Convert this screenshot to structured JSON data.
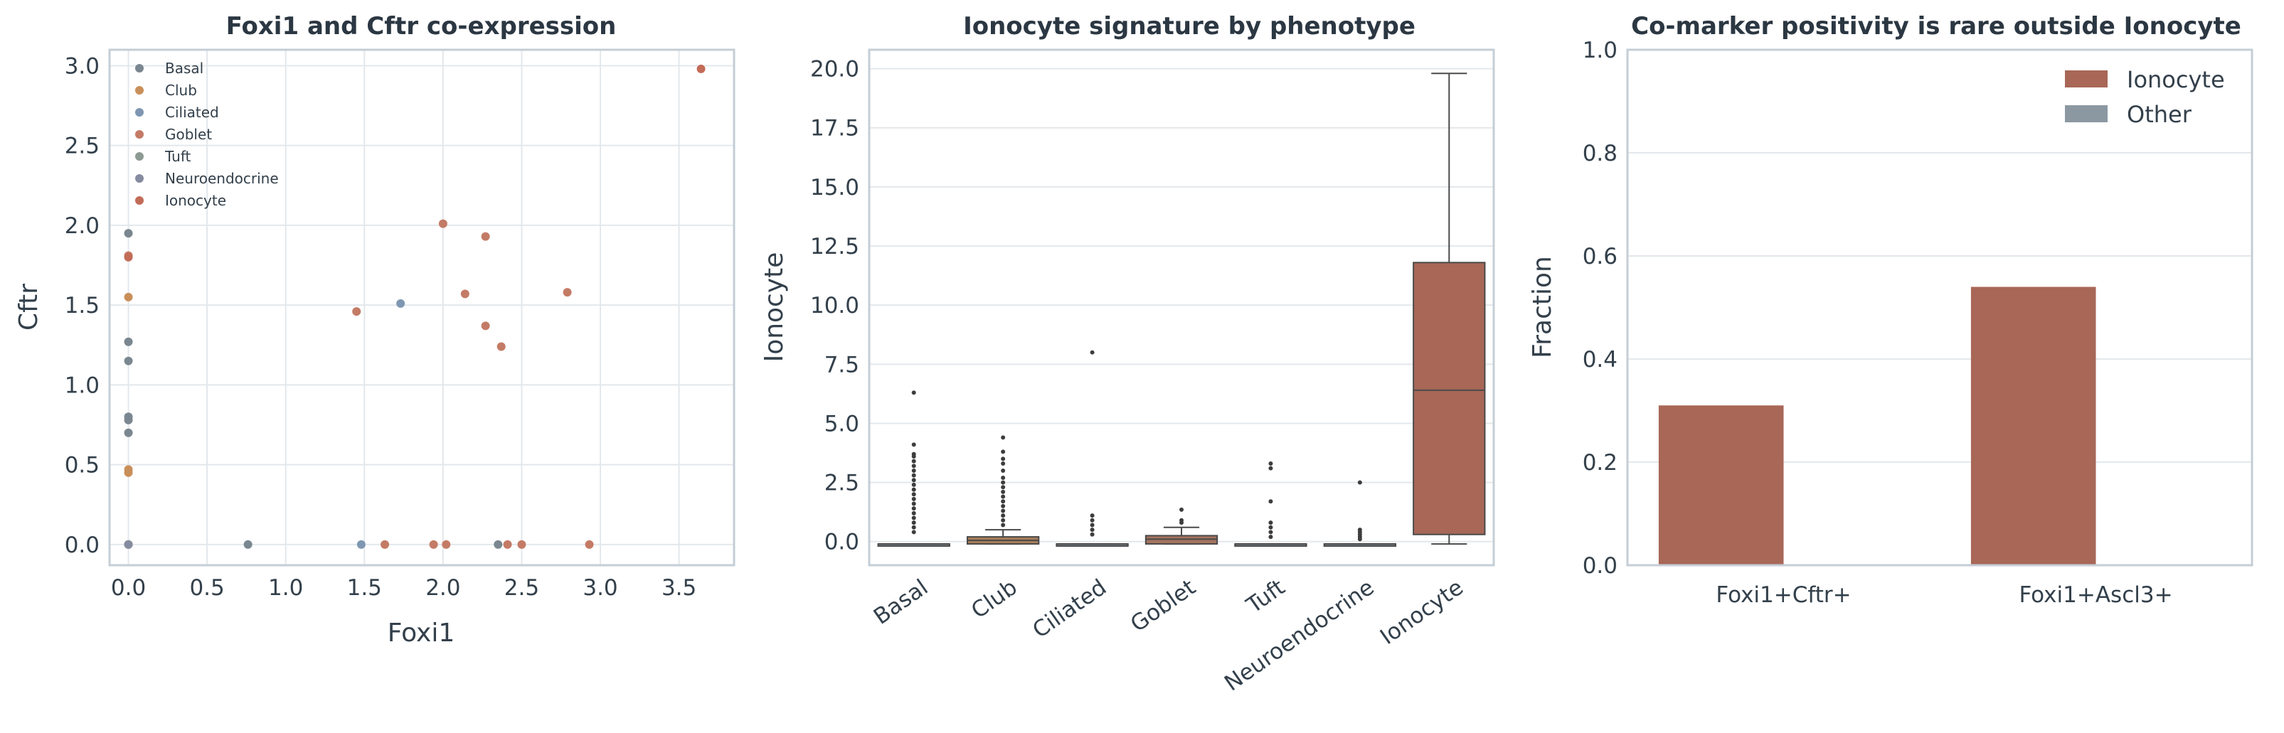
{
  "colors": {
    "Basal": "#7a8790",
    "Club": "#c98f5a",
    "Ciliated": "#7f97b2",
    "Goblet": "#c47b66",
    "Tuft": "#8d9a94",
    "Neuroendocrine": "#858ba0",
    "Ionocyte": "#c26c57",
    "bar_ionocyte": "#a86757",
    "bar_other": "#8b98a2",
    "box_basal": "#828d94",
    "box_club": "#a87d5a",
    "box_goblet": "#a4735f",
    "box_ionocyte": "#a86757"
  },
  "chart_data": [
    {
      "type": "scatter",
      "title": "Foxi1 and Cftr co-expression",
      "xlabel": "Foxi1",
      "ylabel": "Cftr",
      "xlim": [
        -0.12,
        3.85
      ],
      "ylim": [
        -0.13,
        3.1
      ],
      "xticks": [
        "0.0",
        "0.5",
        "1.0",
        "1.5",
        "2.0",
        "2.5",
        "3.0",
        "3.5"
      ],
      "yticks": [
        "0.0",
        "0.5",
        "1.0",
        "1.5",
        "2.0",
        "2.5",
        "3.0"
      ],
      "grid": true,
      "legend_position": "top-left",
      "series": [
        {
          "name": "Basal",
          "points": [
            [
              0,
              0
            ],
            [
              0,
              1.95
            ],
            [
              0,
              1.27
            ],
            [
              0,
              1.15
            ],
            [
              0,
              0.8
            ],
            [
              0,
              0.78
            ],
            [
              0,
              0.7
            ],
            [
              0.76,
              0
            ],
            [
              2.35,
              0
            ]
          ]
        },
        {
          "name": "Club",
          "points": [
            [
              0,
              1.55
            ],
            [
              0,
              0.47
            ],
            [
              0,
              0.45
            ],
            [
              0,
              0
            ]
          ]
        },
        {
          "name": "Ciliated",
          "points": [
            [
              1.73,
              1.51
            ],
            [
              1.48,
              0
            ]
          ]
        },
        {
          "name": "Goblet",
          "points": [
            [
              0,
              1.81
            ],
            [
              1.45,
              1.46
            ],
            [
              2.0,
              2.01
            ],
            [
              2.27,
              1.93
            ],
            [
              2.14,
              1.57
            ],
            [
              2.27,
              1.37
            ],
            [
              2.37,
              1.24
            ],
            [
              2.79,
              1.58
            ],
            [
              1.63,
              0
            ],
            [
              1.94,
              0
            ],
            [
              2.02,
              0
            ],
            [
              2.41,
              0
            ],
            [
              2.5,
              0
            ],
            [
              2.93,
              0
            ]
          ]
        },
        {
          "name": "Tuft",
          "points": [
            [
              0,
              0
            ]
          ]
        },
        {
          "name": "Neuroendocrine",
          "points": [
            [
              0,
              0
            ]
          ]
        },
        {
          "name": "Ionocyte",
          "points": [
            [
              3.64,
              2.98
            ],
            [
              0,
              1.8
            ]
          ]
        }
      ]
    },
    {
      "type": "box",
      "title": "Ionocyte signature by phenotype",
      "xlabel": "",
      "ylabel": "Ionocyte",
      "ylim": [
        -1.0,
        20.8
      ],
      "yticks": [
        "0.0",
        "2.5",
        "5.0",
        "7.5",
        "10.0",
        "12.5",
        "15.0",
        "17.5",
        "20.0"
      ],
      "categories": [
        "Basal",
        "Club",
        "Ciliated",
        "Goblet",
        "Tuft",
        "Neuroendocrine",
        "Ionocyte"
      ],
      "boxes": [
        {
          "category": "Basal",
          "q1": -0.1,
          "median": -0.1,
          "q3": -0.1,
          "whisker_low": -0.1,
          "whisker_high": -0.1,
          "outliers": [
            6.3,
            4.1,
            3.7,
            3.6,
            3.4,
            3.2,
            3.0,
            2.8,
            2.6,
            2.4,
            2.2,
            2.0,
            1.8,
            1.6,
            1.4,
            1.2,
            1.0,
            0.8,
            0.6,
            0.4
          ]
        },
        {
          "category": "Club",
          "q1": -0.1,
          "median": 0.05,
          "q3": 0.2,
          "whisker_low": -0.1,
          "whisker_high": 0.5,
          "outliers": [
            4.4,
            3.8,
            3.5,
            3.3,
            3.0,
            2.7,
            2.5,
            2.3,
            2.1,
            1.9,
            1.7,
            1.5,
            1.3,
            1.1,
            0.9,
            0.7
          ]
        },
        {
          "category": "Ciliated",
          "q1": -0.1,
          "median": -0.1,
          "q3": -0.1,
          "whisker_low": -0.1,
          "whisker_high": -0.1,
          "outliers": [
            8.0,
            1.1,
            0.9,
            0.7,
            0.5,
            0.3
          ]
        },
        {
          "category": "Goblet",
          "q1": -0.1,
          "median": 0.1,
          "q3": 0.25,
          "whisker_low": -0.1,
          "whisker_high": 0.6,
          "outliers": [
            1.35,
            0.9,
            0.8
          ]
        },
        {
          "category": "Tuft",
          "q1": -0.1,
          "median": -0.1,
          "q3": -0.1,
          "whisker_low": -0.1,
          "whisker_high": -0.1,
          "outliers": [
            3.3,
            3.1,
            1.7,
            0.8,
            0.6,
            0.4,
            0.2
          ]
        },
        {
          "category": "Neuroendocrine",
          "q1": -0.1,
          "median": -0.1,
          "q3": -0.1,
          "whisker_low": -0.1,
          "whisker_high": -0.1,
          "outliers": [
            2.5,
            0.5,
            0.4,
            0.3,
            0.2,
            0.1
          ]
        },
        {
          "category": "Ionocyte",
          "q1": 0.3,
          "median": 6.4,
          "q3": 11.8,
          "whisker_low": -0.1,
          "whisker_high": 19.8,
          "outliers": []
        }
      ]
    },
    {
      "type": "bar",
      "title": "Co-marker positivity is rare outside Ionocyte",
      "xlabel": "",
      "ylabel": "Fraction",
      "ylim": [
        0,
        1.0
      ],
      "yticks": [
        "0.0",
        "0.2",
        "0.4",
        "0.6",
        "0.8",
        "1.0"
      ],
      "categories": [
        "Foxi1+Cftr+",
        "Foxi1+Ascl3+"
      ],
      "legend_position": "top-right",
      "series": [
        {
          "name": "Ionocyte",
          "values": [
            0.31,
            0.54
          ]
        },
        {
          "name": "Other",
          "values": [
            0.0,
            0.0
          ]
        }
      ]
    }
  ]
}
